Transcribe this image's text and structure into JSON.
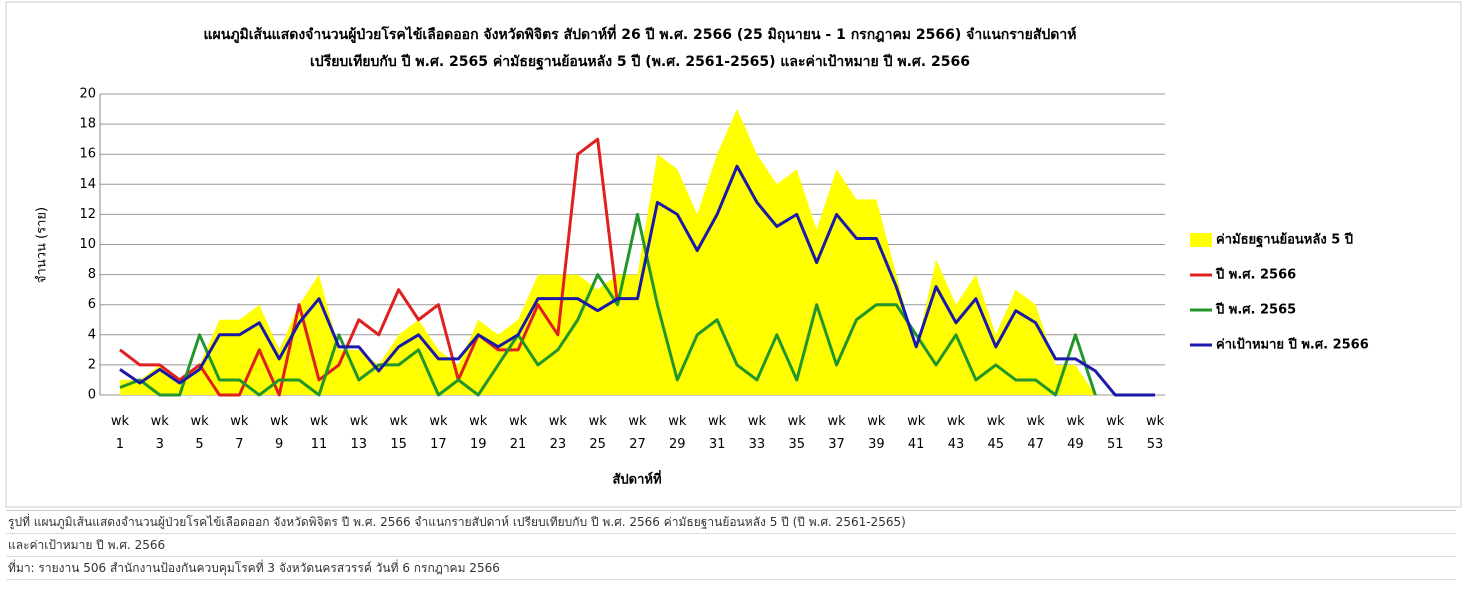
{
  "chart_data": {
    "type": "line",
    "title": [
      "แผนภูมิเส้นแสดงจำนวนผู้ป่วยโรคไข้เลือดออก จังหวัดพิจิตร สัปดาห์ที่ 26 ปี พ.ศ. 2566 (25 มิถุนายน - 1 กรกฎาคม 2566) จำแนกรายสัปดาห์",
      "เปรียบเทียบกับ ปี พ.ศ. 2565 ค่ามัธยฐานย้อนหลัง 5 ปี (พ.ศ. 2561-2565) และค่าเป้าหมาย ปี พ.ศ. 2566"
    ],
    "y_label": "จำนวน (ราย)",
    "x_label": "สัปดาห์ที่",
    "categories": [
      "wk 1",
      null,
      "wk 3",
      null,
      "wk 5",
      null,
      "wk 7",
      null,
      "wk 9",
      null,
      "wk 11",
      null,
      "wk 13",
      null,
      "wk 15",
      null,
      "wk 17",
      null,
      "wk 19",
      null,
      "wk 21",
      null,
      "wk 23",
      null,
      "wk 25",
      null,
      "wk 27",
      null,
      "wk 29",
      null,
      "wk 31",
      null,
      "wk 33",
      null,
      "wk 35",
      null,
      "wk 37",
      null,
      "wk 39",
      null,
      "wk 41",
      null,
      "wk 43",
      null,
      "wk 45",
      null,
      "wk 47",
      null,
      "wk 49",
      null,
      "wk 51",
      null,
      "wk 53"
    ],
    "series": [
      {
        "name": "ค่ามัธยฐานย้อนหลัง 5 ปี",
        "color": "#ffff00",
        "kind": "area",
        "values": [
          1,
          1,
          2,
          1,
          2,
          5,
          5,
          6,
          3,
          6,
          8,
          3,
          3,
          2,
          4,
          5,
          3,
          2,
          5,
          4,
          5,
          8,
          8,
          8,
          7,
          8,
          8,
          16,
          15,
          12,
          16,
          19,
          16,
          14,
          15,
          11,
          15,
          13,
          13,
          8,
          3,
          9,
          6,
          8,
          4,
          7,
          6,
          2,
          2,
          0,
          0,
          0,
          0
        ]
      },
      {
        "name": "ปี พ.ศ. 2566",
        "color": "#e02020",
        "kind": "line",
        "values": [
          3,
          2,
          2,
          1,
          2,
          0,
          0,
          3,
          0,
          6,
          1,
          2,
          5,
          4,
          7,
          5,
          6,
          1,
          4,
          3,
          3,
          6,
          4,
          16,
          17,
          6,
          null,
          null,
          null,
          null,
          null,
          null,
          null,
          null,
          null,
          null,
          null,
          null,
          null,
          null,
          null,
          null,
          null,
          null,
          null,
          null,
          null,
          null,
          null,
          null,
          null,
          null,
          null
        ]
      },
      {
        "name": "ปี พ.ศ. 2565",
        "color": "#22962a",
        "kind": "line",
        "values": [
          0.5,
          1,
          0,
          0,
          4,
          1,
          1,
          0,
          1,
          1,
          0,
          4,
          1,
          2,
          2,
          3,
          0,
          1,
          0,
          2,
          4,
          2,
          3,
          5,
          8,
          6,
          12,
          6,
          1,
          4,
          5,
          2,
          1,
          4,
          1,
          6,
          2,
          5,
          6,
          6,
          4,
          2,
          4,
          1,
          2,
          1,
          1,
          0,
          4,
          0,
          null,
          null,
          null
        ]
      },
      {
        "name": "ค่าเป้าหมาย ปี พ.ศ. 2566",
        "color": "#1a1aa8",
        "kind": "line",
        "values": [
          1.7,
          0.8,
          1.7,
          0.8,
          1.7,
          4,
          4,
          4.8,
          2.4,
          4.8,
          6.4,
          3.2,
          3.2,
          1.6,
          3.2,
          4,
          2.4,
          2.4,
          4,
          3.2,
          4,
          6.4,
          6.4,
          6.4,
          5.6,
          6.4,
          6.4,
          12.8,
          12,
          9.6,
          12,
          15.2,
          12.8,
          11.2,
          12,
          8.8,
          12,
          10.4,
          10.4,
          7.2,
          3.2,
          7.2,
          4.8,
          6.4,
          3.2,
          5.6,
          4.8,
          2.4,
          2.4,
          1.6,
          0,
          0,
          0
        ]
      }
    ],
    "ylim": [
      0,
      20
    ],
    "yticks": [
      0,
      2,
      4,
      6,
      8,
      10,
      12,
      14,
      16,
      18,
      20
    ],
    "grid": true,
    "legend": "right"
  },
  "caption": [
    "รูปที่  แผนภูมิเส้นแสดงจำนวนผู้ป่วยโรคไข้เลือดออก จังหวัดพิจิตร ปี พ.ศ. 2566 จำแนกรายสัปดาห์ เปรียบเทียบกับ ปี พ.ศ. 2566 ค่ามัธยฐานย้อนหลัง 5 ปี (ปี พ.ศ. 2561-2565)",
    "และค่าเป้าหมาย ปี พ.ศ. 2566",
    "ที่มา: รายงาน 506 สำนักงานป้องกันควบคุมโรคที่ 3 จังหวัดนครสวรรค์ วันที่ 6 กรกฎาคม  2566"
  ]
}
